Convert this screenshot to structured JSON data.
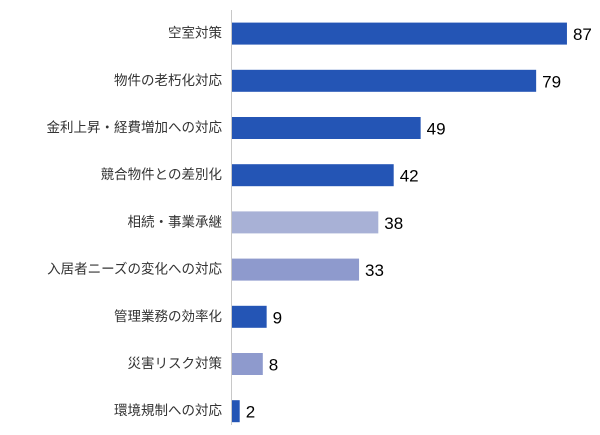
{
  "chart_data": {
    "type": "bar",
    "orientation": "horizontal",
    "categories": [
      "空室対策",
      "物件の老朽化対応",
      "金利上昇・経費増加への対応",
      "競合物件との差別化",
      "相続・事業承継",
      "入居者ニーズの変化への対応",
      "管理業務の効率化",
      "災害リスク対策",
      "環境規制への対応"
    ],
    "values": [
      87,
      79,
      49,
      42,
      38,
      33,
      9,
      8,
      2
    ],
    "bar_colors": [
      "#2455b5",
      "#2455b5",
      "#2455b5",
      "#2455b5",
      "#a8b1d6",
      "#8e9acd",
      "#2455b5",
      "#8e9acd",
      "#2455b5"
    ],
    "xlim": [
      0,
      100
    ],
    "grid": false,
    "legend": false,
    "title": "",
    "xlabel": "",
    "ylabel": ""
  }
}
